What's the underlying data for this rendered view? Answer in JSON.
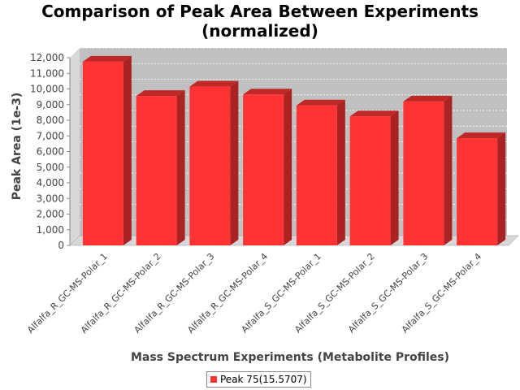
{
  "chart_data": {
    "type": "bar",
    "title_line1": "Comparison of Peak Area Between Experiments",
    "title_line2": "(normalized)",
    "xlabel": "Mass Spectrum Experiments (Metabolite Profiles)",
    "ylabel": "Peak Area (1e-3)",
    "ylim": [
      0,
      12000
    ],
    "yticks": [
      "0",
      "1,000",
      "2,000",
      "3,000",
      "4,000",
      "5,000",
      "6,000",
      "7,000",
      "8,000",
      "9,000",
      "10,000",
      "11,000",
      "12,000"
    ],
    "categories": [
      "Alfalfa_R_GC-MS-Polar_1",
      "Alfalfa_R_GC-MS-Polar_2",
      "Alfalfa_R_GC-MS-Polar_3",
      "Alfalfa_R_GC-MS-Polar_4",
      "Alfalfa_S_GC-MS-Polar_1",
      "Alfalfa_S_GC-MS-Polar_2",
      "Alfalfa_S_GC-MS-Polar_3",
      "Alfalfa_S_GC-MS-Polar_4"
    ],
    "series": [
      {
        "name": "Peak 75(15.5707)",
        "color": "#ff3333",
        "values": [
          11750,
          9550,
          10150,
          9650,
          8950,
          8250,
          9200,
          6850
        ]
      }
    ],
    "grid": true,
    "legend": "bottom-center"
  }
}
